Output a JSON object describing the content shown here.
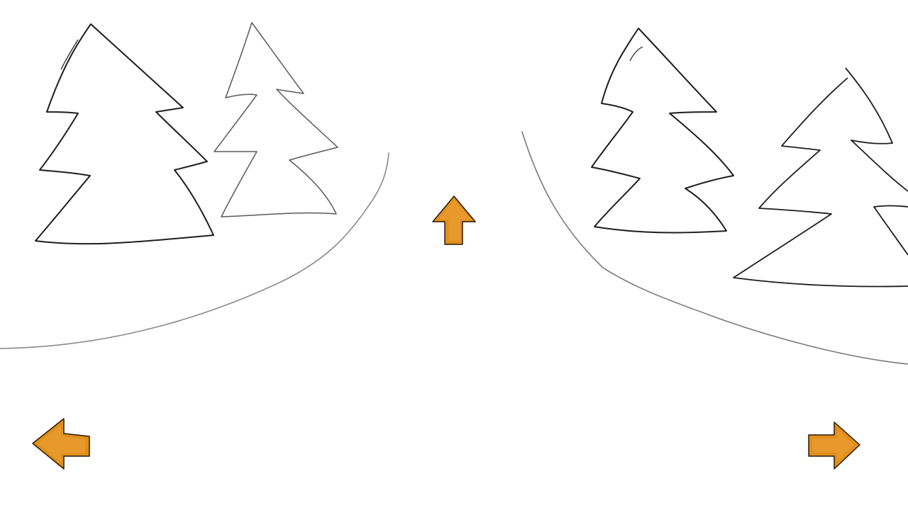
{
  "scene": {
    "background_color": "#ffffff",
    "ink_color": "#1e1e1e",
    "light_ink_color": "#7a7a7a"
  },
  "navigation": {
    "arrow_fill_color": "#e08f1c",
    "arrow_stroke_color": "#2a1a08",
    "forward": {
      "icon": "arrow-up-icon"
    },
    "left": {
      "icon": "arrow-left-icon"
    },
    "right": {
      "icon": "arrow-right-icon"
    }
  }
}
